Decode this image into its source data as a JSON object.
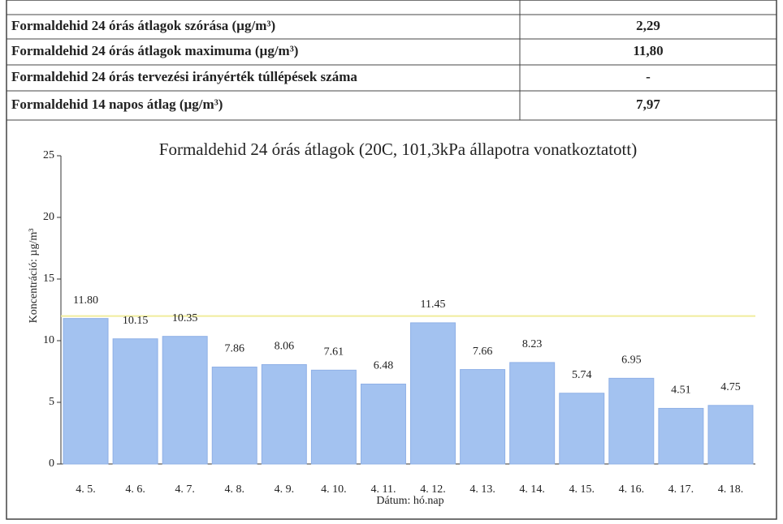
{
  "table": {
    "rows": [
      [
        "Formaldehid 24 órás átlagok szórása (µg/m³)",
        "2,29"
      ],
      [
        "Formaldehid 24 órás átlagok maximuma (µg/m³)",
        "11,80"
      ],
      [
        "Formaldehid 24 órás tervezési irányérték túllépések száma",
        "-"
      ],
      [
        "Formaldehid 14 napos átlag (µg/m³)",
        "7,97"
      ]
    ]
  },
  "chart_data": {
    "type": "bar",
    "title": "Formaldehid 24 órás átlagok (20C, 101,3kPa állapotra vonatkoztatott)",
    "y_label": "Koncentráció: µg/m³",
    "x_label": "Dátum: hó.nap",
    "categories": [
      "4. 5.",
      "4. 6.",
      "4. 7.",
      "4. 8.",
      "4. 9.",
      "4. 10.",
      "4. 11.",
      "4. 12.",
      "4. 13.",
      "4. 14.",
      "4. 15.",
      "4. 16.",
      "4. 17.",
      "4. 18."
    ],
    "values": [
      11.8,
      10.15,
      10.35,
      7.86,
      8.06,
      7.61,
      6.48,
      11.45,
      7.66,
      8.23,
      5.74,
      6.95,
      4.51,
      4.75
    ],
    "value_labels": [
      "11.80",
      "10.15",
      "10.35",
      "7.86",
      "8.06",
      "7.61",
      "6.48",
      "11.45",
      "7.66",
      "8.23",
      "5.74",
      "6.95",
      "4.51",
      "4.75"
    ],
    "color": "#a3c2f0",
    "reference_line": {
      "value": 12,
      "color": "#f0ec9c"
    },
    "ylim": [
      0,
      25
    ],
    "yticks": [
      0,
      5,
      10,
      15,
      20,
      25
    ]
  }
}
